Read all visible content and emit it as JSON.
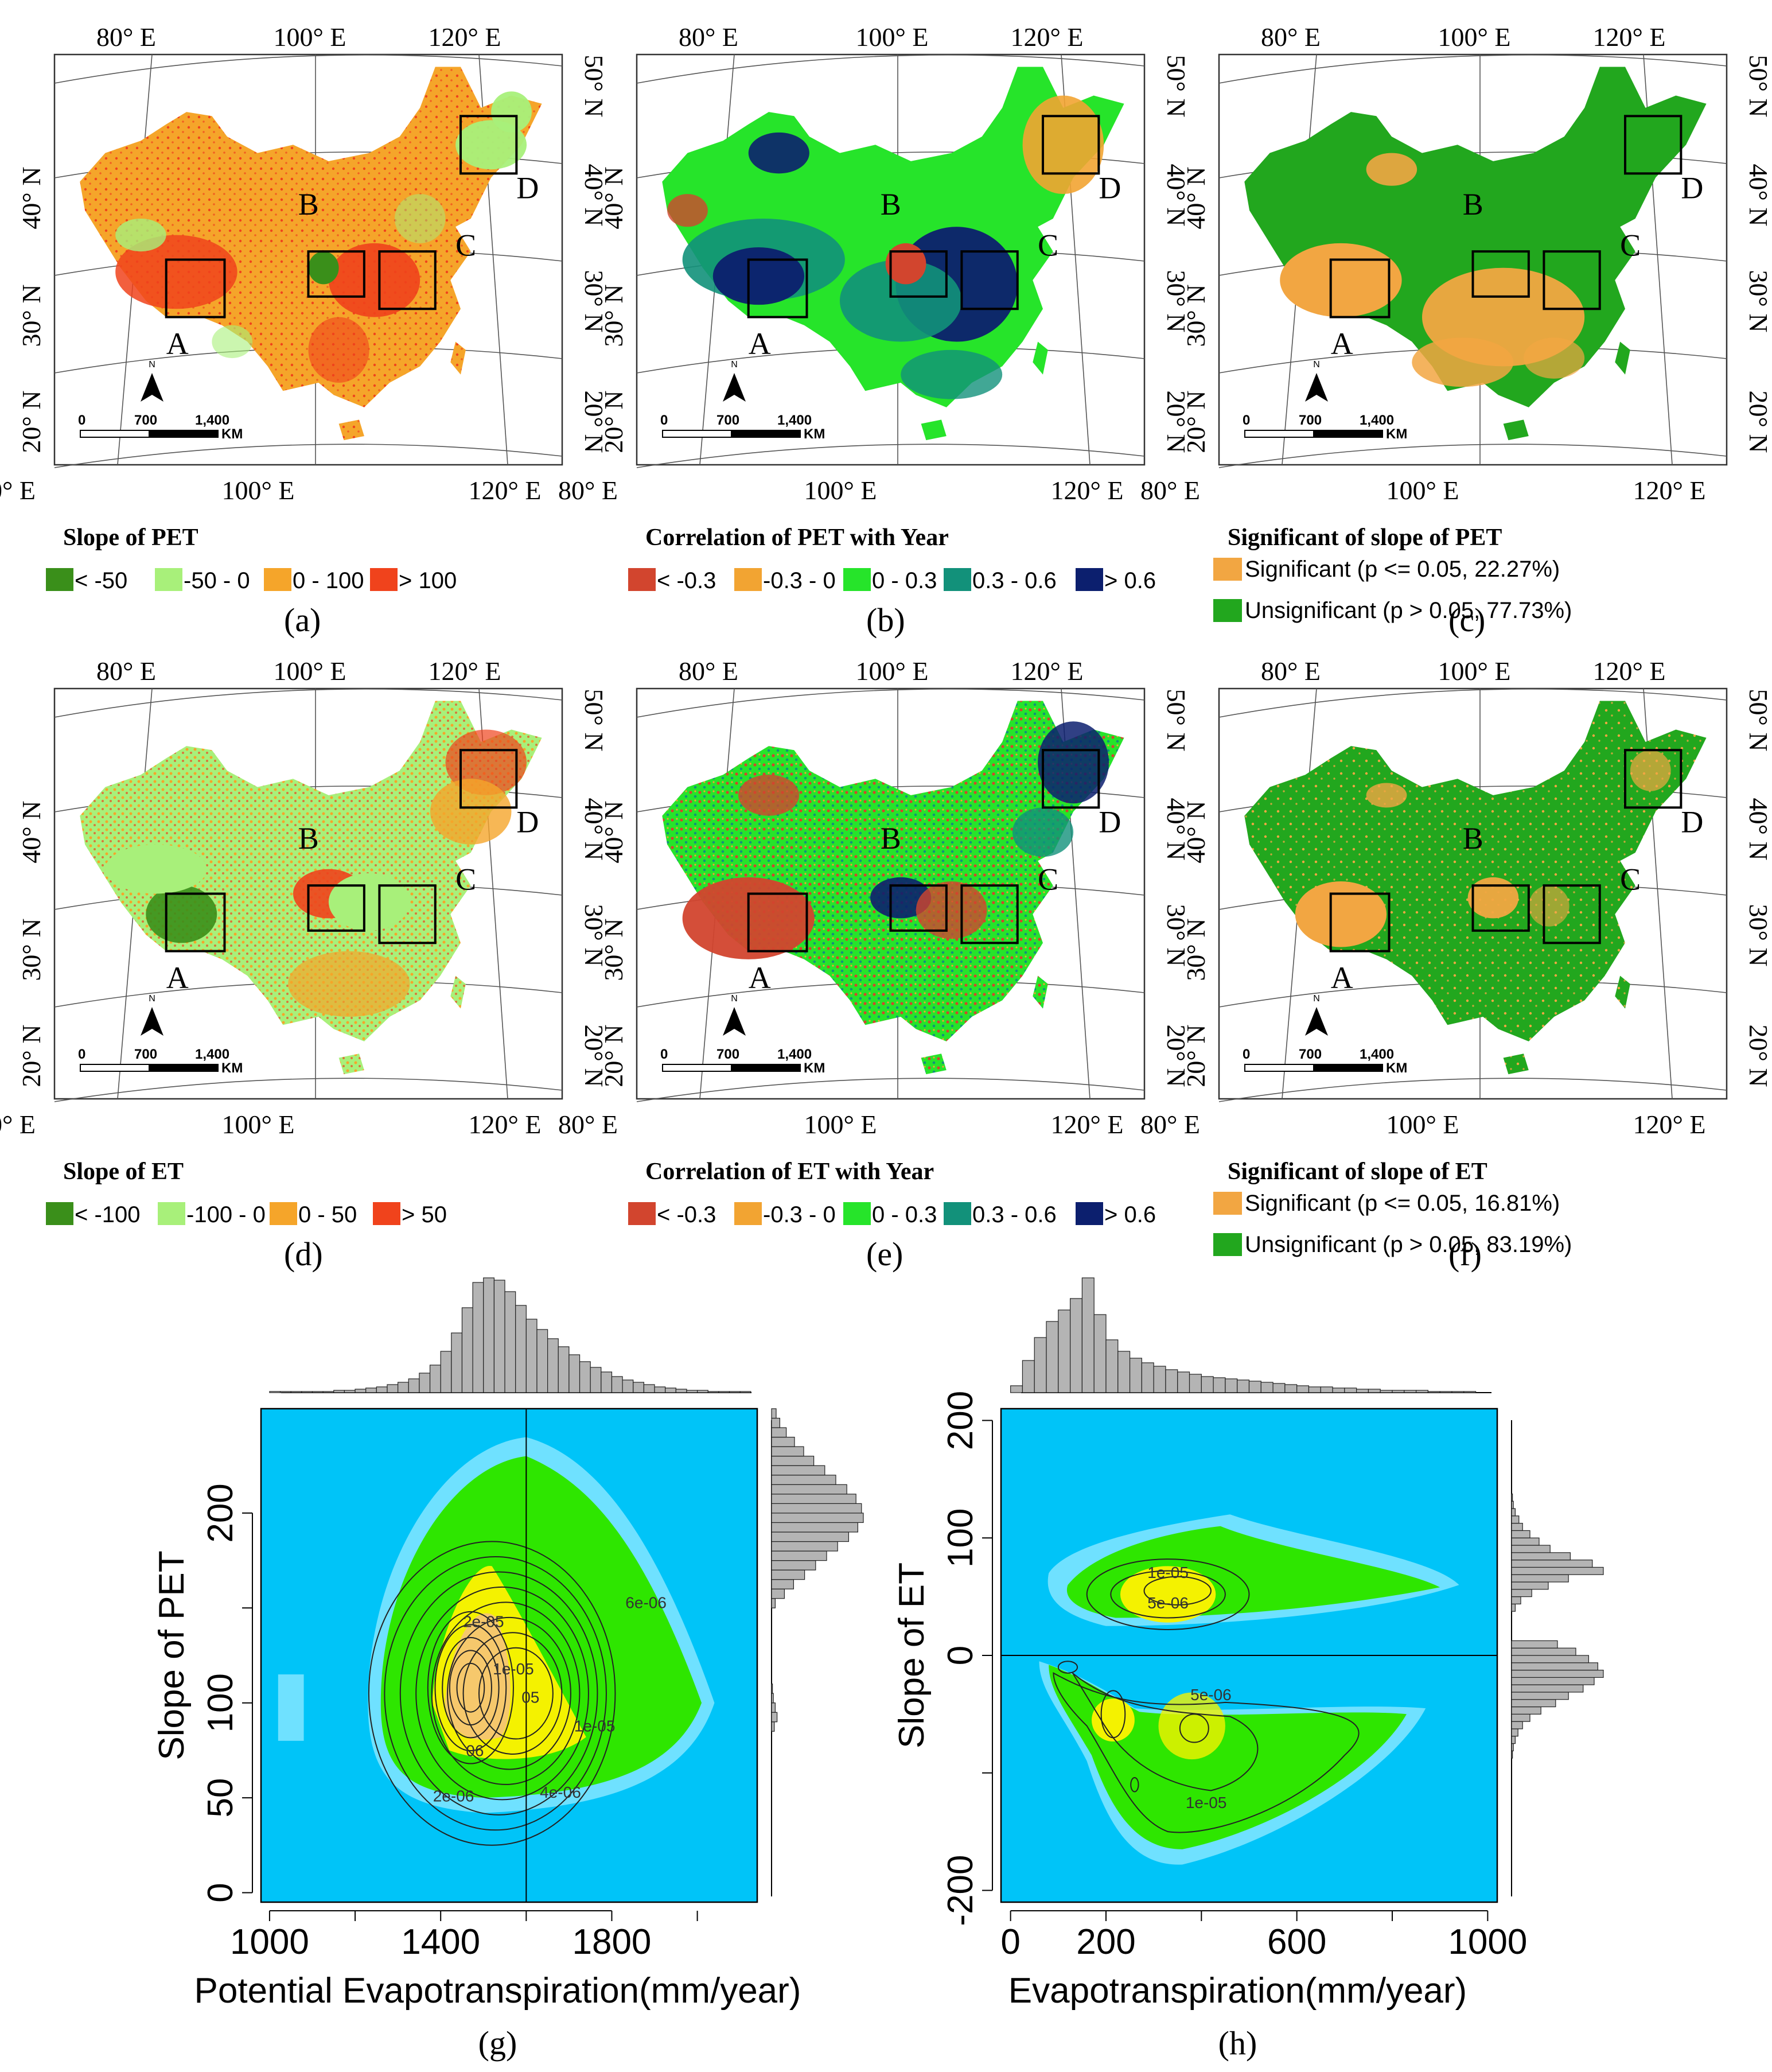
{
  "colors": {
    "pet_slope": [
      "#3a8f1a",
      "#a8f07a",
      "#f5a52a",
      "#f0431c"
    ],
    "corr": [
      "#d2452e",
      "#f2a432",
      "#26e42a",
      "#12917a",
      "#0c1f6e"
    ],
    "signif": [
      "#f2a642",
      "#22a71e"
    ],
    "density_bg": "#00c4f8",
    "density_green": "#2ee600",
    "density_yellow": "#f4f200",
    "density_peach": "#f6c86c",
    "hist_bar": "#b4b4b4"
  },
  "maps": {
    "lon_ticks": [
      "80° E",
      "100° E",
      "120° E"
    ],
    "lat_ticks": [
      "20° N",
      "30° N",
      "40° N",
      "50° N"
    ],
    "boxes": [
      "A",
      "B",
      "C",
      "D"
    ],
    "north": "N",
    "scale": {
      "zero": "0",
      "mid": "700",
      "end": "1,400",
      "unit": "KM"
    }
  },
  "panels": {
    "a": {
      "letter": "(a)",
      "legend_title": "Slope of PET",
      "legend_items": [
        "< -50",
        "-50 - 0",
        "0 - 100",
        "> 100"
      ]
    },
    "b": {
      "letter": "(b)",
      "legend_title": "Correlation of PET with Year",
      "legend_items": [
        "< -0.3",
        "-0.3 - 0",
        "0 - 0.3",
        "0.3 - 0.6",
        "> 0.6"
      ]
    },
    "c": {
      "letter": "(c)",
      "legend_title": "Significant of slope of PET",
      "legend_items": [
        "Significant (p <= 0.05, 22.27%)",
        "Unsignificant (p > 0.05, 77.73%)"
      ],
      "significant_pct": 22.27
    },
    "d": {
      "letter": "(d)",
      "legend_title": "Slope of ET",
      "legend_items": [
        "< -100",
        "-100 - 0",
        "0 - 50",
        "> 50"
      ]
    },
    "e": {
      "letter": "(e)",
      "legend_title": "Correlation of ET with Year",
      "legend_items": [
        "< -0.3",
        "-0.3 - 0",
        "0 - 0.3",
        "0.3 - 0.6",
        "> 0.6"
      ]
    },
    "f": {
      "letter": "(f)",
      "legend_title": "Significant of slope of ET",
      "legend_items": [
        "Significant (p <= 0.05, 16.81%)",
        "Unsignificant (p > 0.05, 83.19%)"
      ],
      "significant_pct": 16.81
    }
  },
  "chart_data": [
    {
      "type": "heatmap",
      "panel": "(g)",
      "xlabel": "Potential Evapotranspiration(mm/year)",
      "ylabel": "Slope of PET",
      "xlim": [
        980,
        2140
      ],
      "ylim": [
        -5,
        255
      ],
      "x_ticks": [
        1000,
        1400,
        1800
      ],
      "y_ticks": [
        0,
        50,
        100,
        150,
        200
      ],
      "y_tick_labels": [
        "0",
        "50",
        "100",
        "",
        "200"
      ],
      "reference_line_x": 1600,
      "contour_labels": [
        "2e-06",
        "4e-06",
        "6e-06",
        "2e-05",
        "1e-05",
        "1e-05",
        "05",
        "06"
      ],
      "density_peak": {
        "x": 1480,
        "y": 110
      },
      "top_hist": {
        "bin_start": 1000,
        "bin_width": 25,
        "counts": [
          1,
          1,
          1,
          1,
          1,
          1,
          2,
          2,
          3,
          4,
          5,
          7,
          9,
          12,
          17,
          24,
          36,
          52,
          74,
          96,
          100,
          98,
          88,
          76,
          64,
          55,
          47,
          40,
          33,
          27,
          22,
          18,
          14,
          11,
          9,
          7,
          5,
          4,
          3,
          2,
          2,
          1,
          1,
          1,
          1
        ]
      },
      "right_hist": {
        "bin_start": 0,
        "bin_width": 5,
        "counts": [
          0,
          0,
          0,
          0,
          0,
          0,
          0,
          0,
          0,
          0,
          0,
          0,
          0,
          0,
          0,
          0,
          0,
          3,
          6,
          4,
          2,
          1,
          0,
          0,
          0,
          0,
          0,
          0,
          0,
          0,
          4,
          14,
          24,
          36,
          48,
          60,
          72,
          84,
          94,
          100,
          98,
          92,
          82,
          70,
          58,
          46,
          35,
          25,
          16,
          9,
          5,
          3,
          2,
          1,
          1,
          1
        ]
      }
    },
    {
      "type": "heatmap",
      "panel": "(h)",
      "xlabel": "Evapotranspiration(mm/year)",
      "ylabel": "Slope of ET",
      "xlim": [
        -20,
        1020
      ],
      "ylim": [
        -210,
        210
      ],
      "x_ticks": [
        0,
        200,
        600,
        1000
      ],
      "y_ticks": [
        -200,
        -100,
        0,
        100,
        200
      ],
      "y_tick_labels": [
        "-200",
        "",
        "0",
        "100",
        "200"
      ],
      "reference_line_y": 0,
      "contour_labels": [
        "1e-05",
        "5e-06",
        "5e-06",
        "1e-05"
      ],
      "top_hist": {
        "bin_start": 0,
        "bin_width": 25,
        "counts": [
          6,
          28,
          48,
          62,
          72,
          82,
          100,
          68,
          46,
          36,
          30,
          26,
          23,
          20,
          18,
          16,
          14,
          13,
          12,
          11,
          10,
          9,
          8,
          7,
          6,
          5,
          5,
          4,
          4,
          3,
          3,
          2,
          2,
          2,
          2,
          1,
          1,
          1,
          1
        ]
      },
      "right_hist": {
        "bin_start": -200,
        "bin_width": 6.25,
        "counts": [
          0,
          0,
          0,
          0,
          0,
          0,
          0,
          0,
          0,
          0,
          0,
          0,
          0,
          0,
          0,
          0,
          0,
          0,
          1,
          2,
          4,
          7,
          12,
          20,
          32,
          48,
          62,
          78,
          90,
          100,
          94,
          84,
          70,
          50,
          0,
          0,
          0,
          0,
          4,
          10,
          22,
          40,
          62,
          100,
          88,
          64,
          42,
          30,
          20,
          12,
          8,
          4,
          2,
          1,
          0,
          0,
          0,
          0,
          0,
          0,
          0,
          0,
          0,
          0
        ]
      }
    }
  ],
  "bottom": {
    "g_letter": "(g)",
    "h_letter": "(h)"
  }
}
